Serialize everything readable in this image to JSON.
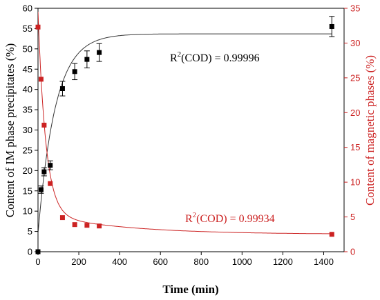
{
  "chart_data": {
    "type": "scatter",
    "title": "",
    "xlabel": "Time (min)",
    "ylabel_left": "Content of IM phase precipitates (%)",
    "ylabel_right": "Content of magnetic phases (%)",
    "xlim": [
      0,
      1500
    ],
    "ylim_left": [
      0,
      60
    ],
    "ylim_right": [
      0,
      35
    ],
    "x_ticks": [
      0,
      200,
      400,
      600,
      800,
      1000,
      1200,
      1400
    ],
    "y_left_ticks": [
      0,
      5,
      10,
      15,
      20,
      25,
      30,
      35,
      40,
      45,
      50,
      55,
      60
    ],
    "y_right_ticks": [
      0,
      5,
      10,
      15,
      20,
      25,
      30,
      35
    ],
    "grid": false,
    "series": [
      {
        "axis": "left",
        "color": "#000000",
        "points": [
          {
            "x": 0,
            "y": 0
          },
          {
            "x": 15,
            "y": 15.3
          },
          {
            "x": 30,
            "y": 19.7
          },
          {
            "x": 60,
            "y": 21.3
          },
          {
            "x": 120,
            "y": 40.2
          },
          {
            "x": 180,
            "y": 44.4
          },
          {
            "x": 240,
            "y": 47.4
          },
          {
            "x": 300,
            "y": 49.1
          },
          {
            "x": 1440,
            "y": 55.5
          }
        ],
        "errors": [
          0,
          0.9,
          1.0,
          1.1,
          1.8,
          2.0,
          2.1,
          2.2,
          2.5
        ],
        "fit": {
          "form": "y0 + A*(1-exp(-x/t))",
          "y0": 4.5,
          "A": 49.2,
          "t": 85
        },
        "annotation": {
          "pre": "R",
          "sup": "2",
          "post": "(COD) = 0.99996"
        }
      },
      {
        "axis": "right",
        "color": "#cc2222",
        "points": [
          {
            "x": 0,
            "y": 32.3
          },
          {
            "x": 15,
            "y": 24.8
          },
          {
            "x": 30,
            "y": 18.2
          },
          {
            "x": 60,
            "y": 9.8
          },
          {
            "x": 120,
            "y": 4.9
          },
          {
            "x": 180,
            "y": 3.9
          },
          {
            "x": 240,
            "y": 3.8
          },
          {
            "x": 300,
            "y": 3.7
          },
          {
            "x": 1440,
            "y": 2.5
          }
        ],
        "fit": {
          "form": "y0 + A1*exp(-x/t1) + A2*exp(-x/t2)",
          "y0": 2.5,
          "A1": 29.0,
          "t1": 38,
          "A2": 3.0,
          "t2": 400
        },
        "annotation": {
          "pre": "R",
          "sup": "2",
          "post": "(COD) = 0.99934"
        }
      }
    ]
  },
  "colors": {
    "left_axis": "#000000",
    "right_axis": "#cc2222",
    "fit_left": "#333333",
    "fit_right": "#cc2222"
  }
}
